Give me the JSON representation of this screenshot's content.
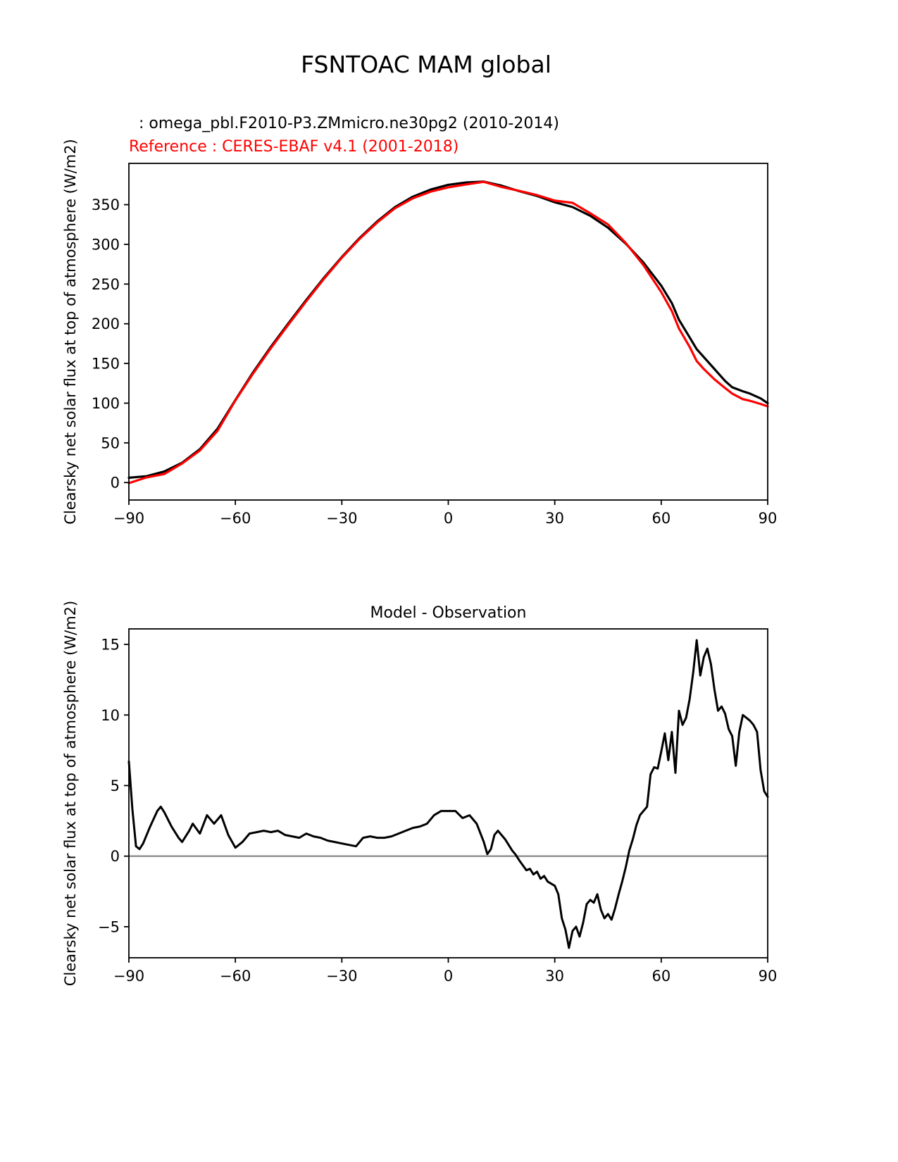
{
  "figure": {
    "title": "FSNTOAC MAM global"
  },
  "top_chart": {
    "legend_model": ": omega_pbl.F2010-P3.ZMmicro.ne30pg2 (2010-2014)",
    "legend_reference": "Reference : CERES-EBAF v4.1 (2001-2018)",
    "ylabel": "Clearsky net solar flux at top of atmosphere (W/m2)"
  },
  "bottom_chart": {
    "title": "Model - Observation",
    "ylabel": "Clearsky net solar flux at top of atmosphere (W/m2)"
  },
  "colors": {
    "model": "#000000",
    "reference": "#ff0000",
    "zero_line": "#8c8c8c"
  },
  "chart_data": [
    {
      "type": "line",
      "title": "FSNTOAC MAM global",
      "xlabel": "",
      "ylabel": "Clearsky net solar flux at top of atmosphere (W/m2)",
      "xlim": [
        -90,
        90
      ],
      "ylim": [
        -22,
        402
      ],
      "xticks": [
        -90,
        -60,
        -30,
        0,
        30,
        60,
        90
      ],
      "yticks": [
        0,
        50,
        100,
        150,
        200,
        250,
        300,
        350
      ],
      "x": [
        -90,
        -85,
        -80,
        -75,
        -70,
        -65,
        -60,
        -55,
        -50,
        -45,
        -40,
        -35,
        -30,
        -25,
        -20,
        -15,
        -10,
        -5,
        0,
        5,
        10,
        15,
        20,
        25,
        30,
        35,
        40,
        45,
        50,
        55,
        60,
        63,
        65,
        68,
        70,
        72,
        75,
        78,
        80,
        83,
        85,
        88,
        90
      ],
      "series": [
        {
          "key": "model",
          "name": "omega_pbl.F2010-P3.ZMmicro.ne30pg2 (2010-2014)",
          "color": "#000000",
          "values": [
            6,
            8,
            14,
            25,
            42,
            68,
            104,
            139,
            171,
            201,
            230,
            258,
            284,
            308,
            329,
            347,
            360,
            369,
            375,
            378,
            379,
            374,
            367,
            361,
            353,
            347,
            336,
            321,
            301,
            277,
            248,
            226,
            205,
            183,
            168,
            158,
            143,
            128,
            120,
            115,
            112,
            106,
            100
          ]
        },
        {
          "key": "reference",
          "name": "CERES-EBAF v4.1 (2001-2018)",
          "color": "#ff0000",
          "values": [
            -0.7,
            6.5,
            10.8,
            24,
            40.4,
            65.4,
            103.4,
            137.4,
            169.3,
            199.3,
            228.4,
            256.7,
            283.1,
            306.9,
            327.7,
            345.6,
            358,
            366.3,
            371.8,
            375.5,
            378.8,
            372.4,
            367.3,
            362.1,
            355.1,
            352.3,
            339.1,
            325.1,
            301.8,
            273.8,
            240,
            216,
            194,
            171,
            153,
            143,
            130,
            119,
            112,
            105,
            103,
            99,
            96
          ]
        }
      ]
    },
    {
      "type": "line",
      "title": "Model - Observation",
      "xlabel": "",
      "ylabel": "Clearsky net solar flux at top of atmosphere (W/m2)",
      "xlim": [
        -90,
        90
      ],
      "ylim": [
        -7.2,
        16.1
      ],
      "xticks": [
        -90,
        -60,
        -30,
        0,
        30,
        60,
        90
      ],
      "yticks": [
        -5,
        0,
        5,
        10,
        15
      ],
      "zero_line": true,
      "zero_line_color": "#8c8c8c",
      "x": [
        -90,
        -89,
        -88,
        -87,
        -86,
        -84,
        -82,
        -81,
        -80,
        -78,
        -76,
        -75,
        -73,
        -72,
        -70,
        -68,
        -66,
        -64,
        -62,
        -60,
        -58,
        -56,
        -54,
        -52,
        -50,
        -48,
        -46,
        -44,
        -42,
        -40,
        -38,
        -36,
        -34,
        -32,
        -30,
        -28,
        -26,
        -24,
        -22,
        -20,
        -18,
        -16,
        -14,
        -12,
        -10,
        -8,
        -6,
        -4,
        -2,
        0,
        2,
        4,
        6,
        8,
        10,
        11,
        12,
        13,
        14,
        16,
        18,
        19,
        20,
        22,
        23,
        24,
        25,
        26,
        27,
        28,
        30,
        31,
        32,
        33,
        34,
        35,
        36,
        37,
        38,
        39,
        40,
        41,
        42,
        43,
        44,
        45,
        46,
        47,
        48,
        49,
        50,
        51,
        52,
        53,
        54,
        55,
        56,
        57,
        58,
        59,
        60,
        61,
        62,
        63,
        64,
        65,
        66,
        67,
        68,
        69,
        70,
        71,
        72,
        73,
        74,
        75,
        76,
        77,
        78,
        79,
        80,
        81,
        82,
        83,
        84,
        85,
        86,
        87,
        88,
        89,
        90
      ],
      "series": [
        {
          "key": "difference",
          "name": "Model - Observation",
          "color": "#000000",
          "values": [
            6.7,
            3.3,
            0.7,
            0.5,
            0.9,
            2.1,
            3.2,
            3.5,
            3.1,
            2.1,
            1.3,
            1.0,
            1.8,
            2.3,
            1.6,
            2.9,
            2.3,
            2.9,
            1.5,
            0.6,
            1.0,
            1.6,
            1.7,
            1.8,
            1.7,
            1.8,
            1.5,
            1.4,
            1.3,
            1.6,
            1.4,
            1.3,
            1.1,
            1.0,
            0.9,
            0.8,
            0.7,
            1.3,
            1.4,
            1.3,
            1.3,
            1.4,
            1.6,
            1.8,
            2.0,
            2.1,
            2.3,
            2.9,
            3.2,
            3.2,
            3.2,
            2.7,
            2.9,
            2.3,
            1.0,
            0.15,
            0.5,
            1.5,
            1.8,
            1.2,
            0.4,
            0.1,
            -0.3,
            -1.0,
            -0.9,
            -1.3,
            -1.1,
            -1.6,
            -1.4,
            -1.8,
            -2.1,
            -2.7,
            -4.4,
            -5.2,
            -6.5,
            -5.3,
            -5.0,
            -5.7,
            -4.7,
            -3.4,
            -3.1,
            -3.3,
            -2.7,
            -3.8,
            -4.4,
            -4.1,
            -4.5,
            -3.7,
            -2.7,
            -1.8,
            -0.8,
            0.4,
            1.2,
            2.2,
            2.9,
            3.2,
            3.5,
            5.8,
            6.3,
            6.2,
            7.4,
            8.7,
            6.8,
            8.8,
            5.9,
            10.3,
            9.3,
            9.8,
            11.1,
            13.0,
            15.3,
            12.8,
            14.1,
            14.7,
            13.6,
            11.8,
            10.3,
            10.6,
            10.1,
            9.0,
            8.5,
            6.4,
            8.8,
            10.0,
            9.8,
            9.6,
            9.3,
            8.8,
            6.1,
            4.6,
            4.2
          ]
        }
      ]
    }
  ]
}
